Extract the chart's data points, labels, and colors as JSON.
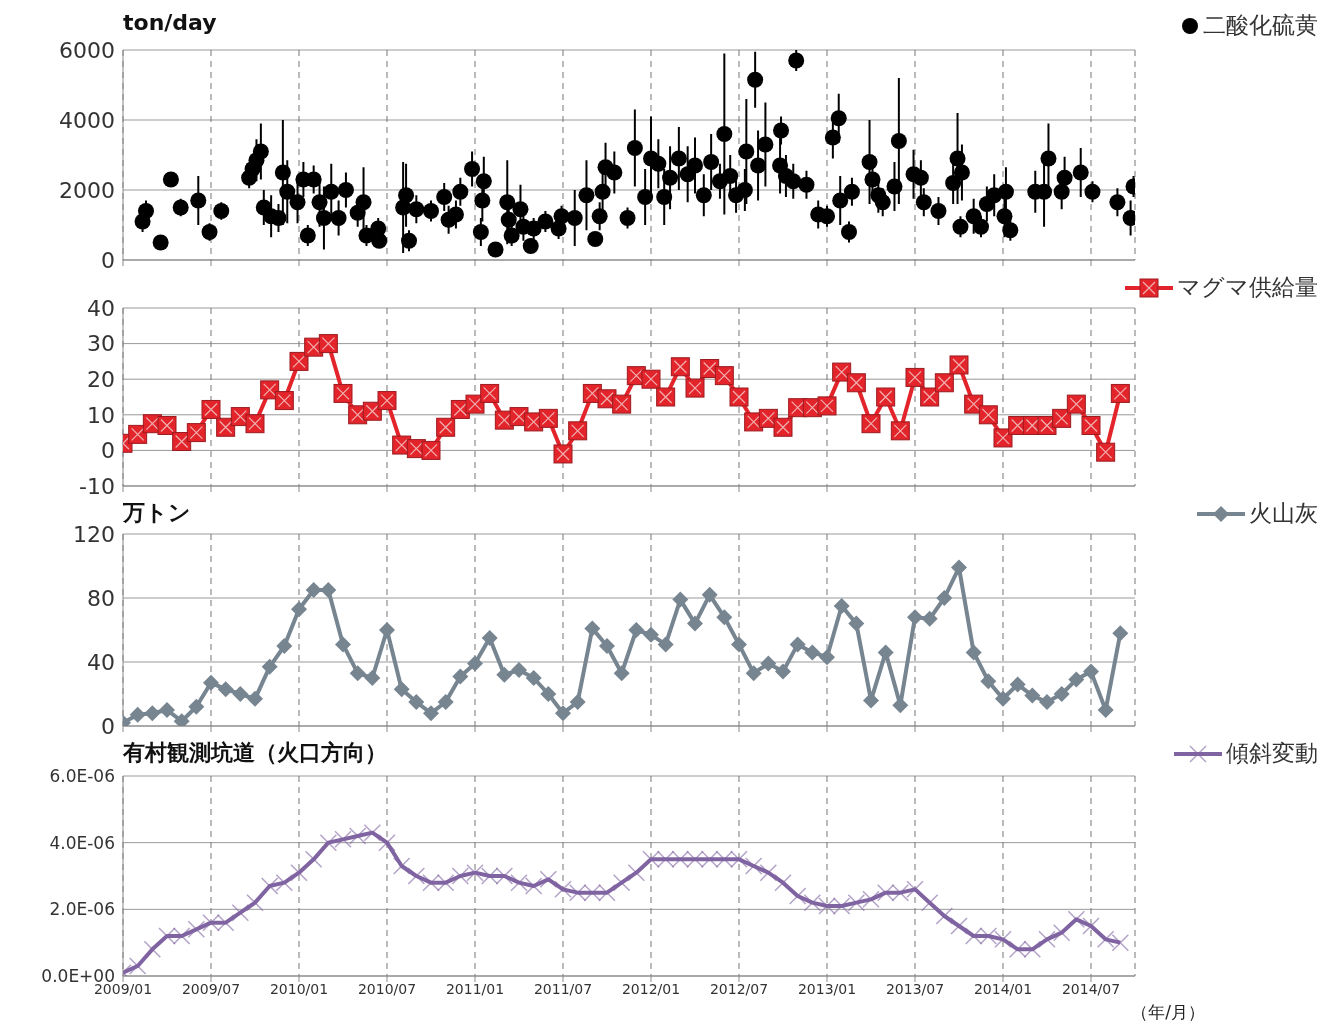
{
  "chart_data": [
    {
      "type": "scatter",
      "ylabel": "ton/day",
      "xlim": [
        "2009-01",
        "2014-10"
      ],
      "xticks": [
        {
          "value": "2009-01",
          "label": null
        },
        {
          "value": "2009-07",
          "label": null
        },
        {
          "value": "2010-01",
          "label": null
        },
        {
          "value": "2010-07",
          "label": null
        },
        {
          "value": "2011-01",
          "label": null
        },
        {
          "value": "2011-07",
          "label": null
        },
        {
          "value": "2012-01",
          "label": null
        },
        {
          "value": "2012-07",
          "label": null
        },
        {
          "value": "2013-01",
          "label": null
        },
        {
          "value": "2013-07",
          "label": null
        },
        {
          "value": "2014-01",
          "label": null
        },
        {
          "value": "2014-07",
          "label": null
        }
      ],
      "ylim": [
        0,
        6000
      ],
      "yticks": [
        0,
        2000,
        4000,
        6000
      ],
      "grid": true,
      "legend": "top right",
      "marker": "circle",
      "tick_labels": "y",
      "series": [
        {
          "name": "二酸化硫黄",
          "color": "#000000",
          "x": [
            "2009-02-11",
            "2009-02-18",
            "2009-03-18",
            "2009-04-09",
            "2009-04-29",
            "2009-06-05",
            "2009-06-28",
            "2009-07-22",
            "2009-09-19",
            "2009-09-26",
            "2009-10-04",
            "2009-10-13",
            "2009-10-19",
            "2009-11-04",
            "2009-11-19",
            "2009-11-28",
            "2009-12-07",
            "2009-12-28",
            "2010-01-10",
            "2010-01-19",
            "2010-02-01",
            "2010-02-13",
            "2010-02-22",
            "2010-03-07",
            "2010-03-22",
            "2010-04-07",
            "2010-05-01",
            "2010-05-13",
            "2010-05-19",
            "2010-06-13",
            "2010-06-15",
            "2010-08-04",
            "2010-08-10",
            "2010-08-16",
            "2010-09-01",
            "2010-10-01",
            "2010-10-28",
            "2010-11-07",
            "2010-11-22",
            "2010-12-01",
            "2010-12-25",
            "2011-01-19",
            "2011-01-16",
            "2011-01-13",
            "2011-02-13",
            "2011-03-07",
            "2011-03-10",
            "2011-03-16",
            "2011-04-04",
            "2011-04-10",
            "2011-04-25",
            "2011-05-01",
            "2011-05-25",
            "2011-06-22",
            "2011-06-28",
            "2011-07-25",
            "2011-08-19",
            "2011-09-07",
            "2011-09-16",
            "2011-09-22",
            "2011-09-28",
            "2011-10-16",
            "2011-11-13",
            "2011-11-28",
            "2011-12-19",
            "2012-01-01",
            "2012-01-16",
            "2012-01-28",
            "2012-02-10",
            "2012-02-28",
            "2012-03-16",
            "2012-04-01",
            "2012-04-19",
            "2012-05-04",
            "2012-05-22",
            "2012-06-01",
            "2012-06-13",
            "2012-06-25",
            "2012-07-13",
            "2012-07-16",
            "2012-08-04",
            "2012-08-10",
            "2012-08-25",
            "2012-09-25",
            "2012-09-27",
            "2012-10-07",
            "2012-10-28",
            "2012-10-22",
            "2012-11-19",
            "2012-12-13",
            "2013-01-01",
            "2013-01-13",
            "2013-01-25",
            "2013-01-28",
            "2013-02-16",
            "2013-02-22",
            "2013-03-28",
            "2013-04-04",
            "2013-04-16",
            "2013-04-25",
            "2013-05-19",
            "2013-05-28",
            "2013-06-28",
            "2013-07-13",
            "2013-07-19",
            "2013-08-19",
            "2013-09-19",
            "2013-09-28",
            "2013-10-07",
            "2013-10-04",
            "2013-11-01",
            "2013-11-16",
            "2013-11-28",
            "2013-12-13",
            "2014-01-07",
            "2014-01-04",
            "2014-01-16",
            "2014-03-07",
            "2014-03-25",
            "2014-04-04",
            "2014-05-01",
            "2014-05-07",
            "2014-06-10",
            "2014-07-04",
            "2014-08-25",
            "2014-09-22",
            "2014-09-28"
          ],
          "values": [
            1100,
            1400,
            500,
            2300,
            1500,
            1700,
            800,
            1400,
            2350,
            2600,
            2850,
            3100,
            1500,
            1250,
            1200,
            2500,
            1950,
            1650,
            2300,
            700,
            2300,
            1650,
            1200,
            1950,
            1200,
            2000,
            1350,
            1650,
            700,
            900,
            550,
            1500,
            1850,
            550,
            1450,
            1400,
            1800,
            1150,
            1300,
            1950,
            2600,
            2250,
            1700,
            800,
            300,
            1650,
            1150,
            700,
            1450,
            950,
            400,
            900,
            1100,
            900,
            1250,
            1200,
            1850,
            600,
            1250,
            1950,
            2650,
            2500,
            1200,
            3200,
            1800,
            2900,
            2750,
            1800,
            2350,
            2900,
            2450,
            2700,
            1850,
            2800,
            2250,
            3600,
            2400,
            1850,
            2000,
            3100,
            5150,
            2700,
            3300,
            2700,
            3700,
            2400,
            5700,
            2250,
            2150,
            1300,
            1250,
            3500,
            4050,
            1700,
            800,
            1950,
            2800,
            2300,
            1850,
            1650,
            2100,
            3400,
            2450,
            2350,
            1650,
            1400,
            2200,
            2900,
            2500,
            950,
            1250,
            950,
            1600,
            1850,
            1950,
            1250,
            850,
            1950,
            1950,
            2900,
            1950,
            2350,
            2500,
            1950,
            1650,
            1200,
            2100
          ],
          "errors": [
            300,
            300,
            150,
            200,
            250,
            700,
            250,
            250,
            300,
            400,
            600,
            800,
            500,
            600,
            400,
            1500,
            900,
            600,
            500,
            300,
            400,
            700,
            900,
            800,
            500,
            500,
            400,
            1000,
            300,
            300,
            200,
            1300,
            900,
            300,
            400,
            300,
            400,
            400,
            400,
            400,
            500,
            700,
            600,
            400,
            200,
            1200,
            400,
            300,
            700,
            400,
            200,
            300,
            300,
            300,
            300,
            800,
            1000,
            200,
            400,
            600,
            700,
            600,
            300,
            1100,
            800,
            1200,
            700,
            800,
            900,
            900,
            800,
            800,
            600,
            800,
            500,
            2300,
            600,
            500,
            600,
            1500,
            800,
            1000,
            1200,
            800,
            400,
            600,
            300,
            500,
            400,
            400,
            300,
            600,
            700,
            700,
            300,
            400,
            1200,
            400,
            500,
            400,
            700,
            1800,
            700,
            500,
            400,
            400,
            600,
            1300,
            800,
            300,
            500,
            300,
            500,
            600,
            700,
            600,
            300,
            600,
            1000,
            1000,
            500,
            600,
            700,
            300,
            400,
            500,
            300
          ]
        }
      ]
    },
    {
      "type": "line",
      "xlim": [
        "2009-01",
        "2014-10"
      ],
      "xticks": [
        {
          "value": "2009-01",
          "label": null
        },
        {
          "value": "2009-07",
          "label": null
        },
        {
          "value": "2010-01",
          "label": null
        },
        {
          "value": "2010-07",
          "label": null
        },
        {
          "value": "2011-01",
          "label": null
        },
        {
          "value": "2011-07",
          "label": null
        },
        {
          "value": "2012-01",
          "label": null
        },
        {
          "value": "2012-07",
          "label": null
        },
        {
          "value": "2013-01",
          "label": null
        },
        {
          "value": "2013-07",
          "label": null
        },
        {
          "value": "2014-01",
          "label": null
        },
        {
          "value": "2014-07",
          "label": null
        }
      ],
      "ylim": [
        -10,
        40
      ],
      "yticks": [
        -10,
        0,
        10,
        20,
        30,
        40
      ],
      "grid": true,
      "legend": "top right",
      "marker": "square",
      "line_style": "solid",
      "tick_labels": "y",
      "x": [
        "2009-01",
        "2009-02",
        "2009-03",
        "2009-04",
        "2009-05",
        "2009-06",
        "2009-07",
        "2009-08",
        "2009-09",
        "2009-10",
        "2009-11",
        "2009-12",
        "2010-01",
        "2010-02",
        "2010-03",
        "2010-04",
        "2010-05",
        "2010-06",
        "2010-07",
        "2010-08",
        "2010-09",
        "2010-10",
        "2010-11",
        "2010-12",
        "2011-01",
        "2011-02",
        "2011-03",
        "2011-04",
        "2011-05",
        "2011-06",
        "2011-07",
        "2011-08",
        "2011-09",
        "2011-10",
        "2011-11",
        "2011-12",
        "2012-01",
        "2012-02",
        "2012-03",
        "2012-04",
        "2012-05",
        "2012-06",
        "2012-07",
        "2012-08",
        "2012-09",
        "2012-10",
        "2012-11",
        "2012-12",
        "2013-01",
        "2013-02",
        "2013-03",
        "2013-04",
        "2013-05",
        "2013-06",
        "2013-07",
        "2013-08",
        "2013-09",
        "2013-10",
        "2013-11",
        "2013-12",
        "2014-01",
        "2014-02",
        "2014-03",
        "2014-04",
        "2014-05",
        "2014-06",
        "2014-07",
        "2014-08",
        "2014-09"
      ],
      "series": [
        {
          "name": "マグマ供給量",
          "color": "#e3242b",
          "values": [
            2,
            4.5,
            7.5,
            7,
            2.5,
            5,
            11.5,
            6.5,
            9.5,
            7.5,
            17,
            14,
            25,
            29,
            30,
            16,
            10,
            11,
            14,
            1.5,
            0.5,
            0,
            6.5,
            11.5,
            13,
            16,
            8.5,
            9.5,
            8,
            9,
            -1,
            5.5,
            16,
            14.5,
            13,
            21,
            20,
            15,
            23.5,
            17.5,
            23,
            21,
            15,
            8,
            9,
            6.5,
            12,
            12,
            12.5,
            22,
            19,
            7.5,
            15,
            5.5,
            20.5,
            15,
            19,
            24,
            13,
            10,
            3.5,
            7,
            7,
            7,
            9,
            13,
            7,
            -0.5,
            16
          ]
        }
      ]
    },
    {
      "type": "line",
      "ylabel": "万トン",
      "xlim": [
        "2009-01",
        "2014-10"
      ],
      "xticks": [
        {
          "value": "2009-01",
          "label": null
        },
        {
          "value": "2009-07",
          "label": null
        },
        {
          "value": "2010-01",
          "label": null
        },
        {
          "value": "2010-07",
          "label": null
        },
        {
          "value": "2011-01",
          "label": null
        },
        {
          "value": "2011-07",
          "label": null
        },
        {
          "value": "2012-01",
          "label": null
        },
        {
          "value": "2012-07",
          "label": null
        },
        {
          "value": "2013-01",
          "label": null
        },
        {
          "value": "2013-07",
          "label": null
        },
        {
          "value": "2014-01",
          "label": null
        },
        {
          "value": "2014-07",
          "label": null
        }
      ],
      "ylim": [
        0,
        120
      ],
      "yticks": [
        0,
        40,
        80,
        120
      ],
      "grid": true,
      "legend": "top right",
      "marker": "diamond",
      "line_style": "solid",
      "tick_labels": "y",
      "x": [
        "2009-01",
        "2009-02",
        "2009-03",
        "2009-04",
        "2009-05",
        "2009-06",
        "2009-07",
        "2009-08",
        "2009-09",
        "2009-10",
        "2009-11",
        "2009-12",
        "2010-01",
        "2010-02",
        "2010-03",
        "2010-04",
        "2010-05",
        "2010-06",
        "2010-07",
        "2010-08",
        "2010-09",
        "2010-10",
        "2010-11",
        "2010-12",
        "2011-01",
        "2011-02",
        "2011-03",
        "2011-04",
        "2011-05",
        "2011-06",
        "2011-07",
        "2011-08",
        "2011-09",
        "2011-10",
        "2011-11",
        "2011-12",
        "2012-01",
        "2012-02",
        "2012-03",
        "2012-04",
        "2012-05",
        "2012-06",
        "2012-07",
        "2012-08",
        "2012-09",
        "2012-10",
        "2012-11",
        "2012-12",
        "2013-01",
        "2013-02",
        "2013-03",
        "2013-04",
        "2013-05",
        "2013-06",
        "2013-07",
        "2013-08",
        "2013-09",
        "2013-10",
        "2013-11",
        "2013-12",
        "2014-01",
        "2014-02",
        "2014-03",
        "2014-04",
        "2014-05",
        "2014-06",
        "2014-07",
        "2014-08",
        "2014-09"
      ],
      "series": [
        {
          "name": "火山灰",
          "color": "#778591",
          "values": [
            2,
            7,
            8,
            10,
            3,
            12,
            27,
            23,
            20,
            17,
            37,
            50,
            73,
            85,
            85,
            51,
            33,
            30,
            60,
            23,
            15,
            8,
            15,
            31,
            39,
            55,
            32,
            35,
            30,
            20,
            8,
            15,
            61,
            50,
            33,
            60,
            57,
            51,
            79,
            64,
            82,
            68,
            51,
            33,
            39,
            34,
            51,
            46,
            43,
            75,
            64,
            16,
            46,
            13,
            68,
            67,
            80,
            99,
            46,
            28,
            17,
            26,
            19,
            15,
            20,
            29,
            34,
            10,
            58
          ]
        }
      ]
    },
    {
      "type": "line",
      "title": "有村観測坑道（火口方向）",
      "xlabel": "（年/月）",
      "xlim": [
        "2009-01",
        "2014-10"
      ],
      "xticks": [
        {
          "value": "2009-01",
          "label": "2009/01"
        },
        {
          "value": "2009-07",
          "label": "2009/07"
        },
        {
          "value": "2010-01",
          "label": "2010/01"
        },
        {
          "value": "2010-07",
          "label": "2010/07"
        },
        {
          "value": "2011-01",
          "label": "2011/01"
        },
        {
          "value": "2011-07",
          "label": "2011/07"
        },
        {
          "value": "2012-01",
          "label": "2012/01"
        },
        {
          "value": "2012-07",
          "label": "2012/07"
        },
        {
          "value": "2013-01",
          "label": "2013/01"
        },
        {
          "value": "2013-07",
          "label": "2013/07"
        },
        {
          "value": "2014-01",
          "label": "2014/01"
        },
        {
          "value": "2014-07",
          "label": "2014/07"
        }
      ],
      "ylim": [
        0,
        6e-06
      ],
      "yticks": [
        {
          "value": 0,
          "label": "0.0E+00"
        },
        {
          "value": 2e-06,
          "label": "2.0E-06"
        },
        {
          "value": 4e-06,
          "label": "4.0E-06"
        },
        {
          "value": 6e-06,
          "label": "6.0E-06"
        }
      ],
      "grid": true,
      "legend": "top right",
      "marker": "cross",
      "line_style": "solid",
      "x": [
        "2009-01",
        "2009-02",
        "2009-03",
        "2009-04",
        "2009-05",
        "2009-06",
        "2009-07",
        "2009-08",
        "2009-09",
        "2009-10",
        "2009-11",
        "2009-12",
        "2010-01",
        "2010-02",
        "2010-03",
        "2010-04",
        "2010-05",
        "2010-06",
        "2010-07",
        "2010-08",
        "2010-09",
        "2010-10",
        "2010-11",
        "2010-12",
        "2011-01",
        "2011-02",
        "2011-03",
        "2011-04",
        "2011-05",
        "2011-06",
        "2011-07",
        "2011-08",
        "2011-09",
        "2011-10",
        "2011-11",
        "2011-12",
        "2012-01",
        "2012-02",
        "2012-03",
        "2012-04",
        "2012-05",
        "2012-06",
        "2012-07",
        "2012-08",
        "2012-09",
        "2012-10",
        "2012-11",
        "2012-12",
        "2013-01",
        "2013-02",
        "2013-03",
        "2013-04",
        "2013-05",
        "2013-06",
        "2013-07",
        "2013-08",
        "2013-09",
        "2013-10",
        "2013-11",
        "2013-12",
        "2014-01",
        "2014-02",
        "2014-03",
        "2014-04",
        "2014-05",
        "2014-06",
        "2014-07",
        "2014-08",
        "2014-09"
      ],
      "series": [
        {
          "name": "傾斜変動",
          "color": "#8064a2",
          "values": [
            1e-07,
            3e-07,
            8e-07,
            1.2e-06,
            1.2e-06,
            1.4e-06,
            1.6e-06,
            1.6e-06,
            1.9e-06,
            2.2e-06,
            2.7e-06,
            2.8e-06,
            3.1e-06,
            3.5e-06,
            4e-06,
            4.1e-06,
            4.2e-06,
            4.3e-06,
            4e-06,
            3.3e-06,
            3e-06,
            2.8e-06,
            2.8e-06,
            3e-06,
            3.1e-06,
            3e-06,
            3e-06,
            2.8e-06,
            2.7e-06,
            2.9e-06,
            2.6e-06,
            2.5e-06,
            2.5e-06,
            2.5e-06,
            2.8e-06,
            3.1e-06,
            3.5e-06,
            3.5e-06,
            3.5e-06,
            3.5e-06,
            3.5e-06,
            3.5e-06,
            3.5e-06,
            3.3e-06,
            3.1e-06,
            2.8e-06,
            2.4e-06,
            2.2e-06,
            2.1e-06,
            2.1e-06,
            2.2e-06,
            2.3e-06,
            2.5e-06,
            2.5e-06,
            2.6e-06,
            2.2e-06,
            1.8e-06,
            1.5e-06,
            1.2e-06,
            1.2e-06,
            1.1e-06,
            8e-07,
            8e-07,
            1.1e-06,
            1.3e-06,
            1.7e-06,
            1.5e-06,
            1.1e-06,
            1e-06
          ]
        }
      ]
    }
  ]
}
